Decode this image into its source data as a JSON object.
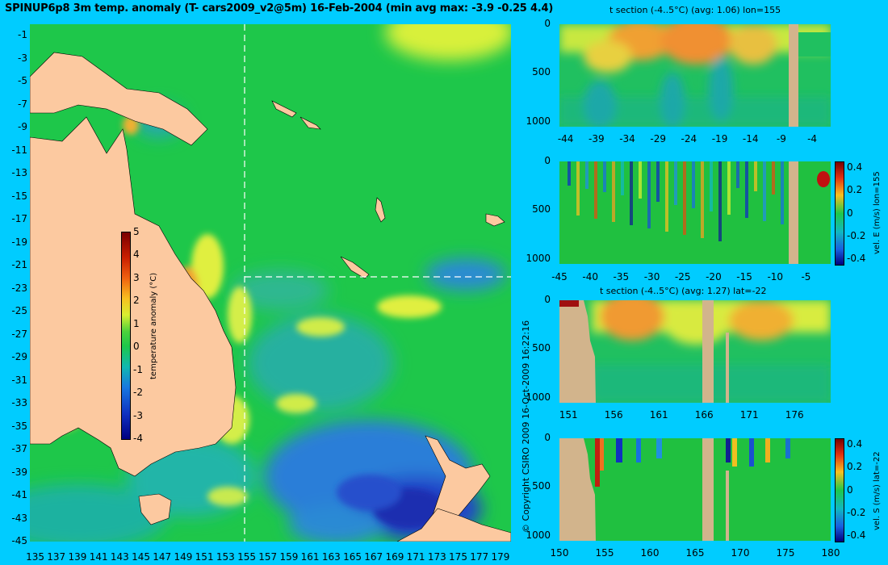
{
  "header": {
    "title": "SPINUP6p8 3m temp. anomaly (T- cars2009_v2@5m) 16-Feb-2004 (min avg max: -3.9 -0.25 4.4)",
    "copyright": "© Copyright CSIRO 2009   16-Oct-2009 16:22:16"
  },
  "colors": {
    "background": "#00ccff",
    "land": "#fcc9a0",
    "section_land": "#d2b48c"
  },
  "chart_data": [
    {
      "type": "heatmap",
      "title": "SPINUP6p8 3m temp. anomaly (T- cars2009_v2@5m) 16-Feb-2004 (min avg max: -3.9 -0.25 4.4)",
      "x_ticks": [
        "135",
        "137",
        "139",
        "141",
        "143",
        "145",
        "147",
        "149",
        "151",
        "153",
        "155",
        "157",
        "159",
        "161",
        "163",
        "165",
        "167",
        "169",
        "171",
        "173",
        "175",
        "177",
        "179"
      ],
      "y_ticks": [
        "-1",
        "-3",
        "-5",
        "-7",
        "-9",
        "-11",
        "-13",
        "-15",
        "-17",
        "-19",
        "-21",
        "-23",
        "-25",
        "-27",
        "-29",
        "-31",
        "-33",
        "-35",
        "-37",
        "-39",
        "-41",
        "-43",
        "-45"
      ],
      "xlim": [
        134.5,
        180
      ],
      "ylim": [
        -45,
        0
      ],
      "section_lines": {
        "lon": 155,
        "lat": -22
      },
      "colorbar": {
        "label": "temperature anomaly (°C)",
        "ticks": [
          "5",
          "4",
          "3",
          "2",
          "1",
          "0",
          "-1",
          "-2",
          "-3",
          "-4"
        ],
        "range": [
          -4,
          5
        ]
      }
    },
    {
      "type": "heatmap",
      "title": "t section (-4..5°C) (avg: 1.06) lon=155",
      "x_ticks": [
        "-44",
        "-39",
        "-34",
        "-29",
        "-24",
        "-19",
        "-14",
        "-9",
        "-4"
      ],
      "y_ticks": [
        "0",
        "500",
        "1000"
      ],
      "xlim": [
        -45,
        -1
      ],
      "ylim": [
        1050,
        0
      ]
    },
    {
      "type": "heatmap",
      "x_ticks": [
        "-45",
        "-40",
        "-35",
        "-30",
        "-25",
        "-20",
        "-15",
        "-10",
        "-5"
      ],
      "y_ticks": [
        "0",
        "500",
        "1000"
      ],
      "xlim": [
        -45,
        -1
      ],
      "ylim": [
        1050,
        0
      ],
      "colorbar": {
        "label": "vel. E (m/s) lon=155",
        "ticks": [
          "0.4",
          "0.2",
          "0",
          "-0.2",
          "-0.4"
        ],
        "range": [
          -0.45,
          0.45
        ]
      }
    },
    {
      "type": "heatmap",
      "title": "t section (-4..5°C) (avg: 1.27) lat=-22",
      "x_ticks": [
        "151",
        "156",
        "161",
        "166",
        "171",
        "176"
      ],
      "y_ticks": [
        "0",
        "500",
        "1000"
      ],
      "xlim": [
        150,
        180
      ],
      "ylim": [
        1050,
        0
      ]
    },
    {
      "type": "heatmap",
      "x_ticks": [
        "150",
        "155",
        "160",
        "165",
        "170",
        "175",
        "180"
      ],
      "y_ticks": [
        "0",
        "500",
        "1000"
      ],
      "xlim": [
        150,
        180
      ],
      "ylim": [
        1050,
        0
      ],
      "colorbar": {
        "label": "vel. S (m/s) lat=-22",
        "ticks": [
          "0.4",
          "0.2",
          "0",
          "-0.2",
          "-0.4"
        ],
        "range": [
          -0.45,
          0.45
        ]
      }
    }
  ]
}
